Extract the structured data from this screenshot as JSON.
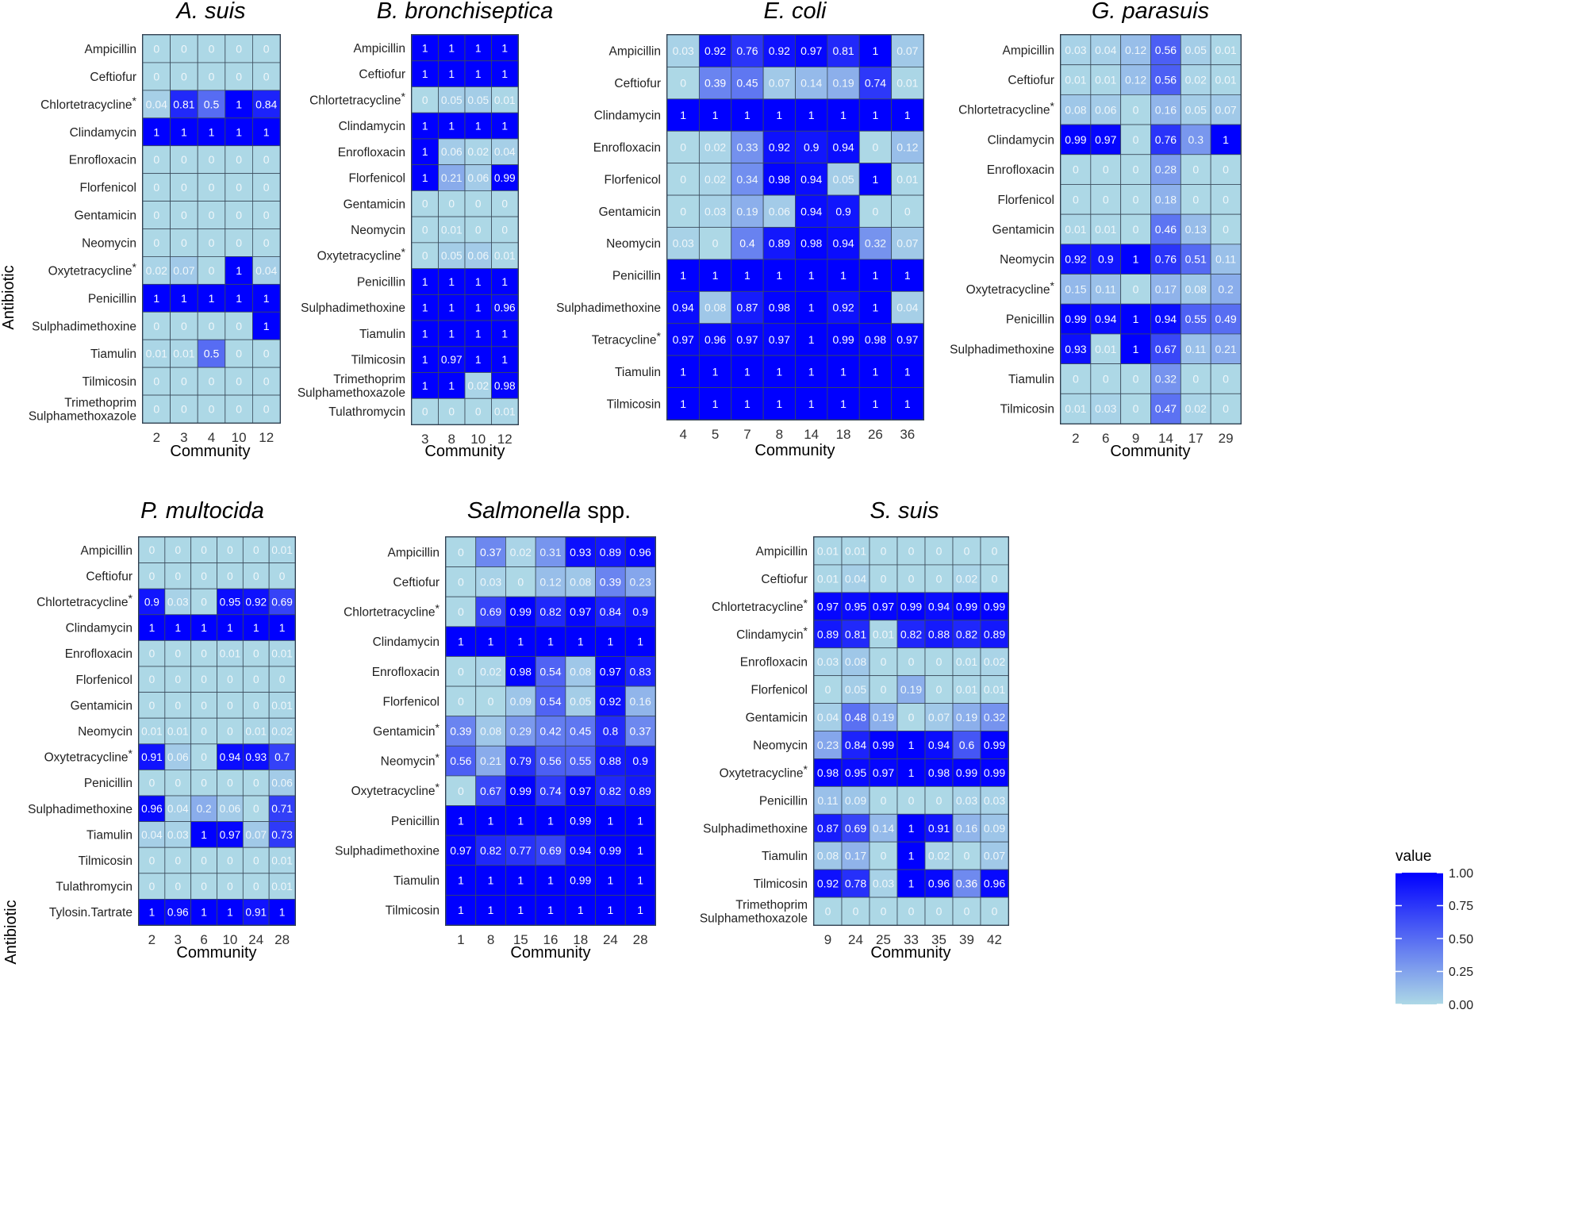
{
  "y_axis_title": "Antibiotic",
  "legend": {
    "title": "value",
    "ticks": [
      "1.00",
      "0.75",
      "0.50",
      "0.25",
      "0.00"
    ],
    "low_color": "#add8e6",
    "high_color": "#0000ff"
  },
  "chart_data": [
    {
      "type": "heatmap",
      "title": "A. suis",
      "title_suffix": "",
      "xlabel": "Community",
      "categories": [
        "2",
        "3",
        "4",
        "10",
        "12"
      ],
      "rows": [
        "Ampicillin",
        "Ceftiofur",
        "Chlortetracycline*",
        "Clindamycin",
        "Enrofloxacin",
        "Florfenicol",
        "Gentamicin",
        "Neomycin",
        "Oxytetracycline*",
        "Penicillin",
        "Sulphadimethoxine",
        "Tiamulin",
        "Tilmicosin",
        "Trimethoprim\nSulphamethoxazole"
      ],
      "values": [
        [
          0,
          0,
          0,
          0,
          0
        ],
        [
          0,
          0,
          0,
          0,
          0
        ],
        [
          0.04,
          0.81,
          0.5,
          1,
          0.84
        ],
        [
          1,
          1,
          1,
          1,
          1
        ],
        [
          0,
          0,
          0,
          0,
          0
        ],
        [
          0,
          0,
          0,
          0,
          0
        ],
        [
          0,
          0,
          0,
          0,
          0
        ],
        [
          0,
          0,
          0,
          0,
          0
        ],
        [
          0.02,
          0.07,
          0,
          1,
          0.04
        ],
        [
          1,
          1,
          1,
          1,
          1
        ],
        [
          0,
          0,
          0,
          0,
          1
        ],
        [
          0.01,
          0.01,
          0.5,
          0,
          0
        ],
        [
          0,
          0,
          0,
          0,
          0
        ],
        [
          0,
          0,
          0,
          0,
          0
        ]
      ]
    },
    {
      "type": "heatmap",
      "title": "B. bronchiseptica",
      "title_suffix": "",
      "xlabel": "Community",
      "categories": [
        "3",
        "8",
        "10",
        "12"
      ],
      "rows": [
        "Ampicillin",
        "Ceftiofur",
        "Chlortetracycline*",
        "Clindamycin",
        "Enrofloxacin",
        "Florfenicol",
        "Gentamicin",
        "Neomycin",
        "Oxytetracycline*",
        "Penicillin",
        "Sulphadimethoxine",
        "Tiamulin",
        "Tilmicosin",
        "Trimethoprim\nSulphamethoxazole",
        "Tulathromycin"
      ],
      "values": [
        [
          1,
          1,
          1,
          1
        ],
        [
          1,
          1,
          1,
          1
        ],
        [
          0,
          0.05,
          0.05,
          0.01
        ],
        [
          1,
          1,
          1,
          1
        ],
        [
          1,
          0.06,
          0.02,
          0.04
        ],
        [
          1,
          0.21,
          0.06,
          0.99
        ],
        [
          0,
          0,
          0,
          0
        ],
        [
          0,
          0.01,
          0,
          0
        ],
        [
          0,
          0.05,
          0.06,
          0.01
        ],
        [
          1,
          1,
          1,
          1
        ],
        [
          1,
          1,
          1,
          0.96
        ],
        [
          1,
          1,
          1,
          1
        ],
        [
          1,
          0.97,
          1,
          1
        ],
        [
          1,
          1,
          0.02,
          0.98
        ],
        [
          0,
          0,
          0,
          0.01
        ]
      ]
    },
    {
      "type": "heatmap",
      "title": "E. coli",
      "title_suffix": "",
      "xlabel": "Community",
      "categories": [
        "4",
        "5",
        "7",
        "8",
        "14",
        "18",
        "26",
        "36"
      ],
      "rows": [
        "Ampicillin",
        "Ceftiofur",
        "Clindamycin",
        "Enrofloxacin",
        "Florfenicol",
        "Gentamicin",
        "Neomycin",
        "Penicillin",
        "Sulphadimethoxine",
        "Tetracycline*",
        "Tiamulin",
        "Tilmicosin"
      ],
      "values": [
        [
          0.03,
          0.92,
          0.76,
          0.92,
          0.97,
          0.81,
          1,
          0.07
        ],
        [
          0,
          0.39,
          0.45,
          0.07,
          0.14,
          0.19,
          0.74,
          0.01
        ],
        [
          1,
          1,
          1,
          1,
          1,
          1,
          1,
          1
        ],
        [
          0,
          0.02,
          0.33,
          0.92,
          0.9,
          0.94,
          0,
          0.12
        ],
        [
          0,
          0.02,
          0.34,
          0.98,
          0.94,
          0.05,
          1,
          0.01
        ],
        [
          0,
          0.03,
          0.19,
          0.06,
          0.94,
          0.9,
          0,
          0
        ],
        [
          0.03,
          0,
          0.4,
          0.89,
          0.98,
          0.94,
          0.32,
          0.07
        ],
        [
          1,
          1,
          1,
          1,
          1,
          1,
          1,
          1
        ],
        [
          0.94,
          0.08,
          0.87,
          0.98,
          1,
          0.92,
          1,
          0.04
        ],
        [
          0.97,
          0.96,
          0.97,
          0.97,
          1,
          0.99,
          0.98,
          0.97
        ],
        [
          1,
          1,
          1,
          1,
          1,
          1,
          1,
          1
        ],
        [
          1,
          1,
          1,
          1,
          1,
          1,
          1,
          1
        ]
      ]
    },
    {
      "type": "heatmap",
      "title": "G. parasuis",
      "title_suffix": "",
      "xlabel": "Community",
      "categories": [
        "2",
        "6",
        "9",
        "14",
        "17",
        "29"
      ],
      "rows": [
        "Ampicillin",
        "Ceftiofur",
        "Chlortetracycline*",
        "Clindamycin",
        "Enrofloxacin",
        "Florfenicol",
        "Gentamicin",
        "Neomycin",
        "Oxytetracycline*",
        "Penicillin",
        "Sulphadimethoxine",
        "Tiamulin",
        "Tilmicosin"
      ],
      "values": [
        [
          0.03,
          0.04,
          0.12,
          0.56,
          0.05,
          0.01
        ],
        [
          0.01,
          0.01,
          0.12,
          0.56,
          0.02,
          0.01
        ],
        [
          0.08,
          0.06,
          0,
          0.16,
          0.05,
          0.07
        ],
        [
          0.99,
          0.97,
          0,
          0.76,
          0.3,
          1
        ],
        [
          0,
          0,
          0,
          0.28,
          0,
          0
        ],
        [
          0,
          0,
          0,
          0.18,
          0,
          0
        ],
        [
          0.01,
          0.01,
          0,
          0.46,
          0.13,
          0
        ],
        [
          0.92,
          0.9,
          1,
          0.76,
          0.51,
          0.11
        ],
        [
          0.15,
          0.11,
          0,
          0.17,
          0.08,
          0.2
        ],
        [
          0.99,
          0.94,
          1,
          0.94,
          0.55,
          0.49
        ],
        [
          0.93,
          0.01,
          1,
          0.67,
          0.11,
          0.21
        ],
        [
          0,
          0,
          0,
          0.32,
          0,
          0
        ],
        [
          0.01,
          0.03,
          0,
          0.47,
          0.02,
          0
        ]
      ]
    },
    {
      "type": "heatmap",
      "title": "P. multocida",
      "title_suffix": "",
      "xlabel": "Community",
      "categories": [
        "2",
        "3",
        "6",
        "10",
        "24",
        "28"
      ],
      "rows": [
        "Ampicillin",
        "Ceftiofur",
        "Chlortetracycline*",
        "Clindamycin",
        "Enrofloxacin",
        "Florfenicol",
        "Gentamicin",
        "Neomycin",
        "Oxytetracycline*",
        "Penicillin",
        "Sulphadimethoxine",
        "Tiamulin",
        "Tilmicosin",
        "Tulathromycin",
        "Tylosin.Tartrate"
      ],
      "values": [
        [
          0,
          0,
          0,
          0,
          0,
          0.01
        ],
        [
          0,
          0,
          0,
          0,
          0,
          0
        ],
        [
          0.9,
          0.03,
          0,
          0.95,
          0.92,
          0.69
        ],
        [
          1,
          1,
          1,
          1,
          1,
          1
        ],
        [
          0,
          0,
          0,
          0.01,
          0,
          0.01
        ],
        [
          0,
          0,
          0,
          0,
          0,
          0
        ],
        [
          0,
          0,
          0,
          0,
          0,
          0.01
        ],
        [
          0.01,
          0.01,
          0,
          0,
          0.01,
          0.02
        ],
        [
          0.91,
          0.06,
          0,
          0.94,
          0.93,
          0.7
        ],
        [
          0,
          0,
          0,
          0,
          0,
          0.06
        ],
        [
          0.96,
          0.04,
          0.2,
          0.06,
          0,
          0.71
        ],
        [
          0.04,
          0.03,
          1,
          0.97,
          0.07,
          0.73
        ],
        [
          0,
          0,
          0,
          0,
          0,
          0.01
        ],
        [
          0,
          0,
          0,
          0,
          0,
          0.01
        ],
        [
          1,
          0.96,
          1,
          1,
          0.91,
          1
        ]
      ]
    },
    {
      "type": "heatmap",
      "title": "Salmonella",
      "title_suffix": " spp.",
      "xlabel": "Community",
      "categories": [
        "1",
        "8",
        "15",
        "16",
        "18",
        "24",
        "28"
      ],
      "rows": [
        "Ampicillin",
        "Ceftiofur",
        "Chlortetracycline*",
        "Clindamycin",
        "Enrofloxacin",
        "Florfenicol",
        "Gentamicin*",
        "Neomycin*",
        "Oxytetracycline*",
        "Penicillin",
        "Sulphadimethoxine",
        "Tiamulin",
        "Tilmicosin"
      ],
      "values": [
        [
          0,
          0.37,
          0.02,
          0.31,
          0.93,
          0.89,
          0.96
        ],
        [
          0,
          0.03,
          0,
          0.12,
          0.08,
          0.39,
          0.23
        ],
        [
          0,
          0.69,
          0.99,
          0.82,
          0.97,
          0.84,
          0.9
        ],
        [
          1,
          1,
          1,
          1,
          1,
          1,
          1
        ],
        [
          0,
          0.02,
          0.98,
          0.54,
          0.08,
          0.97,
          0.83
        ],
        [
          0,
          0,
          0.09,
          0.54,
          0.05,
          0.92,
          0.16
        ],
        [
          0.39,
          0.08,
          0.29,
          0.42,
          0.45,
          0.8,
          0.37
        ],
        [
          0.56,
          0.21,
          0.79,
          0.56,
          0.55,
          0.88,
          0.9
        ],
        [
          0,
          0.67,
          0.99,
          0.74,
          0.97,
          0.82,
          0.89
        ],
        [
          1,
          1,
          1,
          1,
          0.99,
          1,
          1
        ],
        [
          0.97,
          0.82,
          0.77,
          0.69,
          0.94,
          0.99,
          1
        ],
        [
          1,
          1,
          1,
          1,
          0.99,
          1,
          1
        ],
        [
          1,
          1,
          1,
          1,
          1,
          1,
          1
        ]
      ]
    },
    {
      "type": "heatmap",
      "title": "S. suis",
      "title_suffix": "",
      "xlabel": "Community",
      "categories": [
        "9",
        "24",
        "25",
        "33",
        "35",
        "39",
        "42"
      ],
      "rows": [
        "Ampicillin",
        "Ceftiofur",
        "Chlortetracycline*",
        "Clindamycin*",
        "Enrofloxacin",
        "Florfenicol",
        "Gentamicin",
        "Neomycin",
        "Oxytetracycline*",
        "Penicillin",
        "Sulphadimethoxine",
        "Tiamulin",
        "Tilmicosin",
        "Trimethoprim\nSulphamethoxazole"
      ],
      "values": [
        [
          0.01,
          0.01,
          0,
          0,
          0,
          0,
          0
        ],
        [
          0.01,
          0.04,
          0,
          0,
          0,
          0.02,
          0
        ],
        [
          0.97,
          0.95,
          0.97,
          0.99,
          0.94,
          0.99,
          0.99
        ],
        [
          0.89,
          0.81,
          0.01,
          0.82,
          0.88,
          0.82,
          0.89
        ],
        [
          0.03,
          0.08,
          0,
          0,
          0,
          0.01,
          0.02
        ],
        [
          0,
          0.05,
          0,
          0.19,
          0,
          0.01,
          0.01
        ],
        [
          0.04,
          0.48,
          0.19,
          0,
          0.07,
          0.19,
          0.32
        ],
        [
          0.23,
          0.84,
          0.99,
          1,
          0.94,
          0.6,
          0.99
        ],
        [
          0.98,
          0.95,
          0.97,
          1,
          0.98,
          0.99,
          0.99
        ],
        [
          0.11,
          0.09,
          0,
          0,
          0,
          0.03,
          0.03
        ],
        [
          0.87,
          0.69,
          0.14,
          1,
          0.91,
          0.16,
          0.09
        ],
        [
          0.08,
          0.17,
          0,
          1,
          0.02,
          0,
          0.07
        ],
        [
          0.92,
          0.78,
          0.03,
          1,
          0.96,
          0.36,
          0.96
        ],
        [
          0,
          0,
          0,
          0,
          0,
          0,
          0
        ]
      ]
    }
  ]
}
